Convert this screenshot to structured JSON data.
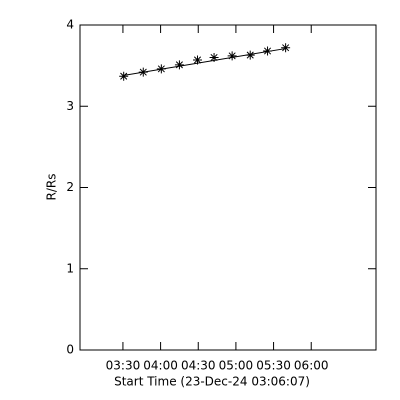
{
  "chart_data": {
    "type": "scatter",
    "x_label": "Start Time (23-Dec-24 03:06:07)",
    "y_label": "R/Rs",
    "x": [
      3.51,
      3.77,
      4.01,
      4.25,
      4.49,
      4.71,
      4.95,
      5.19,
      5.42,
      5.66
    ],
    "values": [
      3.37,
      3.42,
      3.46,
      3.51,
      3.57,
      3.6,
      3.62,
      3.63,
      3.68,
      3.72
    ],
    "color": "#000000",
    "marker": "asterisk",
    "fit": {
      "x": [
        3.51,
        5.66
      ],
      "y": [
        3.38,
        3.71
      ]
    },
    "xlim": [
      2.93,
      6.86
    ],
    "xticks": [
      {
        "value": 3.5,
        "label": "03:30"
      },
      {
        "value": 4.0,
        "label": "04:00"
      },
      {
        "value": 4.5,
        "label": "04:30"
      },
      {
        "value": 5.0,
        "label": "05:00"
      },
      {
        "value": 5.5,
        "label": "05:30"
      },
      {
        "value": 6.0,
        "label": "06:00"
      }
    ],
    "ylim": [
      0,
      4
    ],
    "yticks": [
      0,
      1,
      2,
      3,
      4
    ],
    "grid": false
  }
}
